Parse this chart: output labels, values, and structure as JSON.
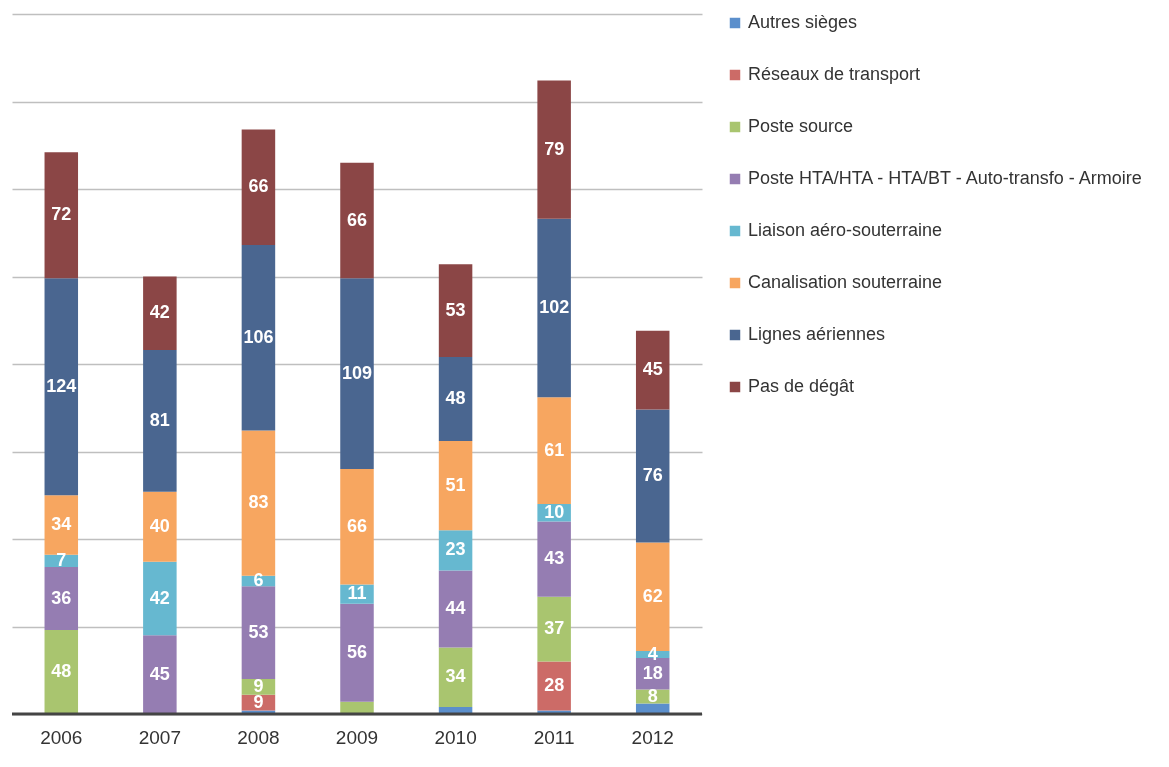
{
  "chart_data": {
    "type": "bar",
    "stacked": true,
    "legend": "right",
    "grid": "y",
    "tick_labels": "x",
    "categories": [
      "2006",
      "2007",
      "2008",
      "2009",
      "2010",
      "2011",
      "2012"
    ],
    "ylim": [
      0,
      400
    ],
    "yticks": [
      {
        "value": 0,
        "label": null
      },
      {
        "value": 50,
        "label": null
      },
      {
        "value": 100,
        "label": null
      },
      {
        "value": 150,
        "label": null
      },
      {
        "value": 200,
        "label": null
      },
      {
        "value": 250,
        "label": null
      },
      {
        "value": 300,
        "label": null
      },
      {
        "value": 350,
        "label": null
      },
      {
        "value": 400,
        "label": null
      }
    ],
    "series": [
      {
        "name": "Autres sièges",
        "color": "#5b8fcc",
        "values": [
          0,
          0,
          2,
          0,
          4,
          2,
          6
        ],
        "value_labels": [
          null,
          null,
          null,
          null,
          null,
          null,
          null
        ]
      },
      {
        "name": "Réseaux de transport",
        "color": "#cc6b67",
        "values": [
          0,
          0,
          9,
          0,
          0,
          28,
          0
        ],
        "value_labels": [
          null,
          null,
          "9",
          null,
          null,
          "28",
          null
        ]
      },
      {
        "name": "Poste source",
        "color": "#a9c56f",
        "values": [
          48,
          0,
          9,
          7,
          34,
          37,
          8
        ],
        "value_labels": [
          "48",
          null,
          "9",
          null,
          "34",
          "37",
          "8"
        ]
      },
      {
        "name": "Poste HTA/HTA - HTA/BT - Auto-transfo - Armoire",
        "color": "#957db2",
        "values": [
          36,
          45,
          53,
          56,
          44,
          43,
          18
        ],
        "value_labels": [
          "36",
          "45",
          "53",
          "56",
          "44",
          "43",
          "18"
        ]
      },
      {
        "name": "Liaison aéro-souterraine",
        "color": "#66b8d0",
        "values": [
          7,
          42,
          6,
          11,
          23,
          10,
          4
        ],
        "value_labels": [
          "7",
          "42",
          "6",
          "11",
          "23",
          "10",
          "4"
        ]
      },
      {
        "name": "Canalisation souterraine",
        "color": "#f7a660",
        "values": [
          34,
          40,
          83,
          66,
          51,
          61,
          62
        ],
        "value_labels": [
          "34",
          "40",
          "83",
          "66",
          "51",
          "61",
          "62"
        ]
      },
      {
        "name": "Lignes aériennes",
        "color": "#4a6690",
        "values": [
          124,
          81,
          106,
          109,
          48,
          102,
          76
        ],
        "value_labels": [
          "124",
          "81",
          "106",
          "109",
          "48",
          "102",
          "76"
        ]
      },
      {
        "name": "Pas de dégât",
        "color": "#8b4646",
        "values": [
          72,
          42,
          66,
          66,
          53,
          79,
          45
        ],
        "value_labels": [
          "72",
          "42",
          "66",
          "66",
          "53",
          "79",
          "45"
        ]
      }
    ]
  }
}
